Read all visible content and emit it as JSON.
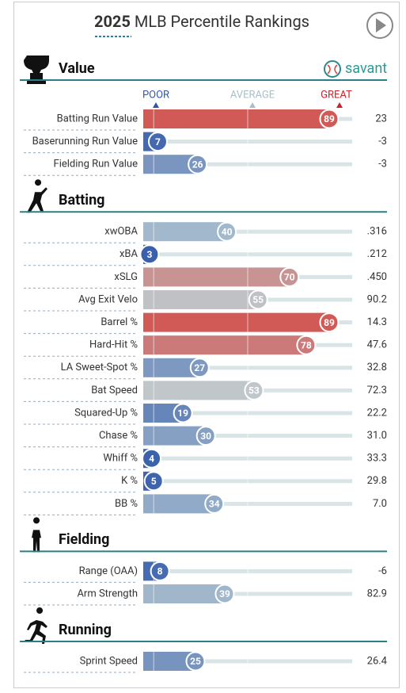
{
  "header": {
    "title_year": "2025",
    "title_text": "MLB Percentile Rankings"
  },
  "legend": {
    "poor": "POOR",
    "average": "AVERAGE",
    "great": "GREAT"
  },
  "brand": "savant",
  "sections": [
    {
      "title": "Value",
      "rows": [
        {
          "label": "Batting Run Value",
          "percentile": 89,
          "stat": "23"
        },
        {
          "label": "Baserunning Run Value",
          "percentile": 7,
          "stat": "-3"
        },
        {
          "label": "Fielding Run Value",
          "percentile": 26,
          "stat": "-3"
        }
      ]
    },
    {
      "title": "Batting",
      "rows": [
        {
          "label": "xwOBA",
          "percentile": 40,
          "stat": ".316"
        },
        {
          "label": "xBA",
          "percentile": 3,
          "stat": ".212"
        },
        {
          "label": "xSLG",
          "percentile": 70,
          "stat": ".450"
        },
        {
          "label": "Avg Exit Velo",
          "percentile": 55,
          "stat": "90.2"
        },
        {
          "label": "Barrel %",
          "percentile": 89,
          "stat": "14.3"
        },
        {
          "label": "Hard-Hit %",
          "percentile": 78,
          "stat": "47.6"
        },
        {
          "label": "LA Sweet-Spot %",
          "percentile": 27,
          "stat": "32.8"
        },
        {
          "label": "Bat Speed",
          "percentile": 53,
          "stat": "72.3"
        },
        {
          "label": "Squared-Up %",
          "percentile": 19,
          "stat": "22.2"
        },
        {
          "label": "Chase %",
          "percentile": 30,
          "stat": "31.0"
        },
        {
          "label": "Whiff %",
          "percentile": 4,
          "stat": "33.3"
        },
        {
          "label": "K %",
          "percentile": 5,
          "stat": "29.8"
        },
        {
          "label": "BB %",
          "percentile": 34,
          "stat": "7.0"
        }
      ]
    },
    {
      "title": "Fielding",
      "rows": [
        {
          "label": "Range (OAA)",
          "percentile": 8,
          "stat": "-6"
        },
        {
          "label": "Arm Strength",
          "percentile": 39,
          "stat": "82.9"
        }
      ]
    },
    {
      "title": "Running",
      "rows": [
        {
          "label": "Sprint Speed",
          "percentile": 25,
          "stat": "26.4"
        }
      ]
    }
  ]
}
